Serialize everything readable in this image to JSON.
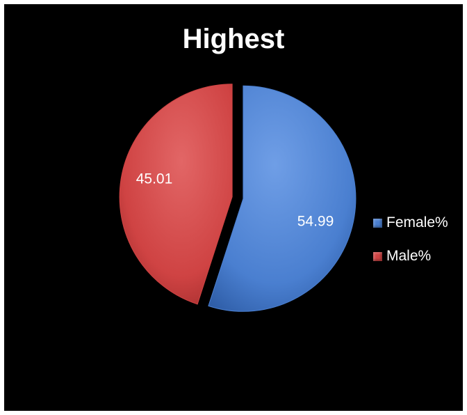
{
  "chart_data": {
    "type": "pie",
    "title": "Highest",
    "categories": [
      "Female%",
      "Male%"
    ],
    "values": [
      54.99,
      45.01
    ],
    "data_labels": [
      "54.99",
      "45.01"
    ],
    "colors": [
      "#4a7fd0",
      "#cf4343"
    ],
    "start_angle_deg": 0,
    "direction": "clockwise",
    "exploded": true,
    "legend_position": "right"
  }
}
